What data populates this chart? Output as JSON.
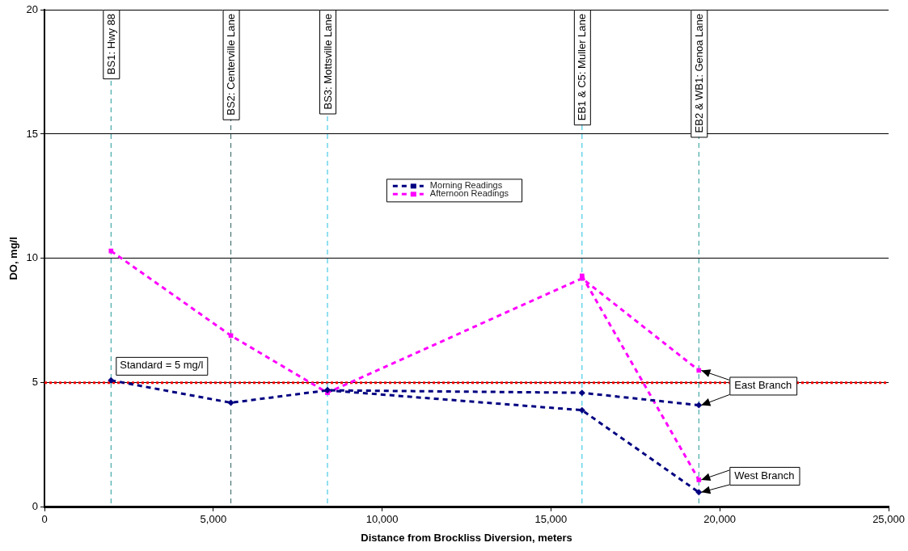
{
  "chart_data": {
    "type": "line",
    "xlabel": "Distance from Brockliss Diversion, meters",
    "ylabel": "DO, mg/l",
    "xlim": [
      0,
      25000
    ],
    "xticks": [
      0,
      {
        "value": 5000,
        "label": "5,000"
      },
      {
        "value": 10000,
        "label": "10,000"
      },
      {
        "value": 15000,
        "label": "15,000"
      },
      {
        "value": 20000,
        "label": "20,000"
      },
      {
        "value": 25000,
        "label": "25,000"
      }
    ],
    "ylim": [
      0,
      20
    ],
    "yticks": [
      0,
      5,
      10,
      15,
      20
    ],
    "grid": "y",
    "legend": "center",
    "line_style": "dashed",
    "series": [
      {
        "name": "Morning Readings",
        "color": "#000080",
        "marker": "diamond",
        "x": [
          1970,
          5520,
          8380,
          15920,
          19380
        ],
        "values": [
          5.1,
          4.2,
          4.7,
          4.6,
          4.1
        ]
      },
      {
        "name": "Afternoon Readings",
        "color": "#ff00ff",
        "marker": "square",
        "x": [
          1970,
          5520,
          8380,
          15920,
          19380
        ],
        "values": [
          10.3,
          6.9,
          4.6,
          9.2,
          5.5
        ]
      },
      {
        "color": "#000080",
        "marker": "diamond",
        "x": [
          8380,
          15920,
          19380
        ],
        "values": [
          4.7,
          3.9,
          0.6
        ]
      },
      {
        "color": "#ff00ff",
        "marker": "square",
        "x": [
          15920,
          19380
        ],
        "values": [
          9.3,
          1.1
        ]
      }
    ],
    "ref_lines": [
      {
        "axis": "y",
        "value": 5,
        "label": "Standard = 5 mg/l",
        "color": "#ff0000",
        "line_style": "dotted"
      },
      {
        "axis": "x",
        "value": 1970,
        "label": "BS1: Hwy 88",
        "color": "#209898",
        "line_style": "dashed"
      },
      {
        "axis": "x",
        "value": 5520,
        "label": "BS2: Centerville Lane",
        "color": "#306060",
        "line_style": "dashed"
      },
      {
        "axis": "x",
        "value": 8380,
        "label": "BS3: Mottsville Lane",
        "color": "#20c0e0",
        "line_style": "dashed"
      },
      {
        "axis": "x",
        "value": 15920,
        "label": "EB1 & C5: Muller Lane",
        "color": "#20c0e0",
        "line_style": "dashed"
      },
      {
        "axis": "x",
        "value": 19380,
        "label": "EB2 & WB1: Genoa Lane",
        "color": "#209898",
        "line_style": "dashed"
      }
    ],
    "annotations": [
      {
        "text": "East Branch",
        "x": 19380,
        "y": 5.5
      },
      {
        "text": "West Branch",
        "x": 19380,
        "y": 1.1
      }
    ]
  }
}
